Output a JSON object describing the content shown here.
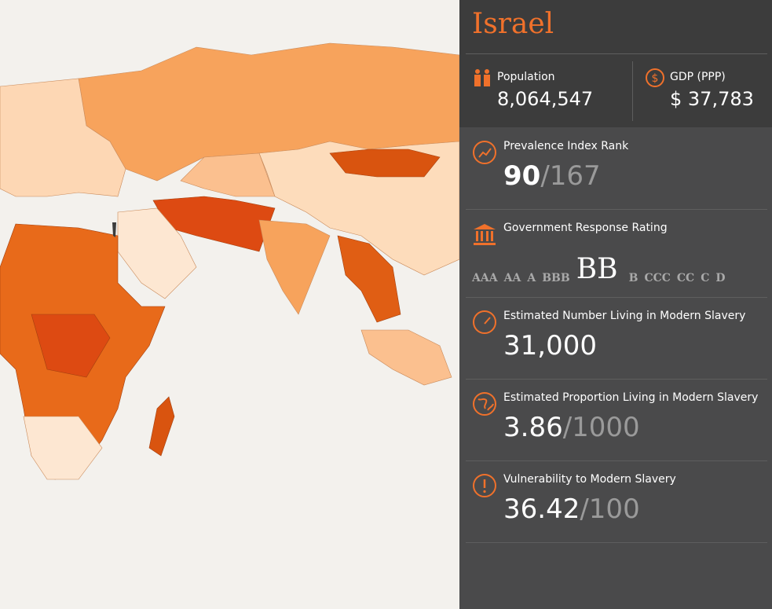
{
  "country": "Israel",
  "population": {
    "label": "Population",
    "value": "8,064,547"
  },
  "gdp": {
    "label": "GDP (PPP)",
    "value": "$ 37,783"
  },
  "prevalence": {
    "label": "Prevalence Index Rank",
    "value": "90",
    "total": "/167"
  },
  "government": {
    "label": "Government Response Rating",
    "ratings": [
      {
        "label": "AAA"
      },
      {
        "label": "AA"
      },
      {
        "label": "A"
      },
      {
        "label": "BBB"
      },
      {
        "label": "BB",
        "selected": true
      },
      {
        "label": "B"
      },
      {
        "label": "CCC"
      },
      {
        "label": "CC"
      },
      {
        "label": "C"
      },
      {
        "label": "D"
      }
    ]
  },
  "estimated_number": {
    "label": "Estimated Number Living in Modern Slavery",
    "value": "31,000"
  },
  "estimated_proportion": {
    "label": "Estimated Proportion Living in Modern Slavery",
    "value": "3.86",
    "total": "/1000"
  },
  "vulnerability": {
    "label": "Vulnerability to Modern Slavery",
    "value": "36.42",
    "total": "/100"
  }
}
